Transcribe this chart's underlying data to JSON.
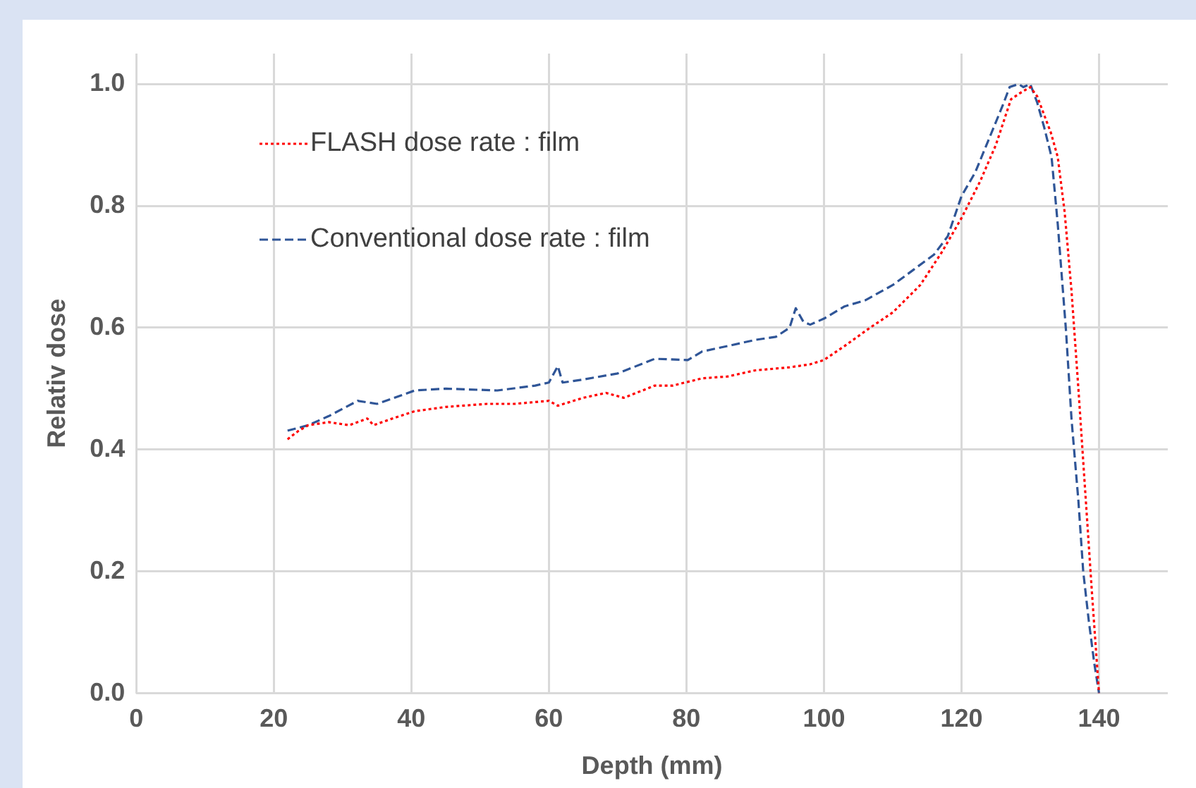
{
  "chart_data": {
    "type": "line",
    "xlabel": "Depth (mm)",
    "ylabel": "Relativ dose",
    "xlim": [
      0,
      150
    ],
    "xticks": [
      0,
      20,
      40,
      60,
      80,
      100,
      120,
      140
    ],
    "ylim": [
      0,
      1.05
    ],
    "yticks": [
      {
        "value": 0,
        "label": "0.0"
      },
      0.2,
      0.4,
      0.6,
      0.8,
      {
        "value": 1,
        "label": "1.0"
      }
    ],
    "grid": true,
    "legend": "top left",
    "marker": "none",
    "series": [
      {
        "name": "FLASH dose rate : film",
        "color": "#ff0000",
        "line_style": "dotted",
        "x": [
          22,
          23.5,
          25,
          28,
          31,
          33.6,
          34.5,
          37,
          40.5,
          45,
          51,
          55,
          60,
          61.3,
          65,
          68.3,
          70.9,
          75.4,
          78,
          82.3,
          86,
          90,
          95,
          98,
          100,
          103,
          106.7,
          110,
          114,
          117.2,
          120,
          122.7,
          125,
          127.2,
          128.5,
          130,
          131,
          132,
          133,
          134,
          135,
          136,
          137,
          138,
          139,
          140
        ],
        "values": [
          0.417,
          0.43,
          0.44,
          0.445,
          0.44,
          0.451,
          0.44,
          0.45,
          0.463,
          0.47,
          0.475,
          0.475,
          0.48,
          0.472,
          0.485,
          0.493,
          0.485,
          0.505,
          0.505,
          0.517,
          0.52,
          0.53,
          0.535,
          0.54,
          0.547,
          0.57,
          0.6,
          0.625,
          0.67,
          0.725,
          0.78,
          0.84,
          0.9,
          0.975,
          0.985,
          0.995,
          0.98,
          0.95,
          0.92,
          0.88,
          0.79,
          0.66,
          0.5,
          0.33,
          0.16,
          0
        ]
      },
      {
        "name": "Conventional dose rate : film",
        "color": "#2f5597",
        "line_style": "dashed",
        "x": [
          22,
          25,
          28,
          32.2,
          35,
          40.5,
          45,
          52.5,
          58,
          60,
          61.3,
          62,
          65,
          70,
          75.4,
          80.2,
          82.3,
          86,
          90,
          93,
          95,
          95.9,
          97,
          98,
          100,
          103,
          106,
          110,
          113,
          116,
          118,
          120,
          122,
          124,
          126,
          127,
          128.3,
          129,
          130,
          131,
          132,
          133.1,
          134,
          135.2,
          136,
          137,
          137.7,
          138.5,
          139.3,
          140
        ],
        "values": [
          0.431,
          0.44,
          0.455,
          0.48,
          0.475,
          0.497,
          0.5,
          0.497,
          0.505,
          0.51,
          0.537,
          0.51,
          0.515,
          0.525,
          0.549,
          0.547,
          0.561,
          0.57,
          0.58,
          0.585,
          0.6,
          0.632,
          0.61,
          0.605,
          0.615,
          0.635,
          0.645,
          0.67,
          0.695,
          0.72,
          0.75,
          0.816,
          0.855,
          0.91,
          0.965,
          0.995,
          1.0,
          0.995,
          1.0,
          0.97,
          0.93,
          0.88,
          0.77,
          0.595,
          0.45,
          0.316,
          0.2,
          0.12,
          0.05,
          0
        ]
      }
    ]
  }
}
